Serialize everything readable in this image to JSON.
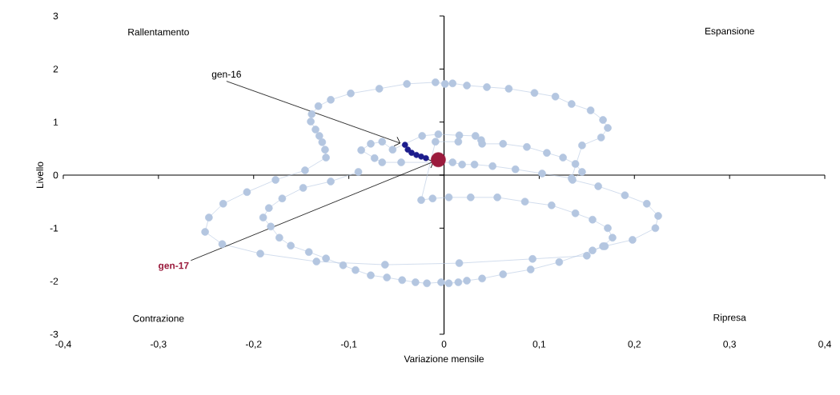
{
  "chart_data": {
    "type": "line",
    "marker": "circle",
    "xlabel": "Variazione mensile",
    "ylabel": "Livello",
    "xlim": [
      -0.4,
      0.4
    ],
    "ylim": [
      -3,
      3
    ],
    "xticks": [
      {
        "value": -0.4,
        "label": "-0,4"
      },
      {
        "value": -0.3,
        "label": "-0,3"
      },
      {
        "value": -0.2,
        "label": "-0,2"
      },
      {
        "value": -0.1,
        "label": "-0,1"
      },
      {
        "value": 0,
        "label": "0"
      },
      {
        "value": 0.1,
        "label": "0,1"
      },
      {
        "value": 0.2,
        "label": "0,2"
      },
      {
        "value": 0.3,
        "label": "0,3"
      },
      {
        "value": 0.4,
        "label": "0,4"
      }
    ],
    "yticks": [
      -3,
      -2,
      -1,
      0,
      1,
      2,
      3
    ],
    "series": [
      {
        "color": "#b4c6e0",
        "x": [
          -0.09,
          -0.119,
          -0.148,
          -0.17,
          -0.184,
          -0.19,
          -0.182,
          -0.173,
          -0.161,
          -0.142,
          -0.124,
          -0.106,
          -0.093,
          -0.077,
          -0.06,
          -0.044,
          -0.03,
          -0.018,
          -0.003,
          0.005,
          0.015,
          0.024,
          0.04,
          0.062,
          0.091,
          0.121,
          0.169,
          0.198,
          0.222,
          0.225,
          0.213,
          0.19,
          0.162,
          0.135,
          0.145,
          0.138,
          0.125,
          0.108,
          0.087,
          0.062,
          0.04,
          0.039,
          0.033,
          0.016,
          -0.006,
          -0.023,
          -0.054,
          -0.065,
          -0.077,
          -0.087,
          -0.073,
          -0.065,
          -0.045,
          0.009,
          0.019,
          0.032,
          0.051,
          0.075,
          0.103,
          0.134,
          0.145,
          0.165,
          0.172,
          0.167,
          0.154,
          0.134,
          0.117,
          0.095,
          0.068,
          0.045,
          0.024,
          0.009,
          0.001,
          -0.009,
          -0.039,
          -0.068,
          -0.098,
          -0.119,
          -0.132,
          -0.139,
          -0.14,
          -0.135,
          -0.131,
          -0.128,
          -0.125,
          -0.124,
          -0.146,
          -0.177,
          -0.207,
          -0.232,
          -0.247,
          -0.251,
          -0.233,
          -0.193,
          -0.134,
          -0.062,
          0.016,
          0.093,
          0.15,
          0.156,
          0.167,
          0.177,
          0.172,
          0.156,
          0.138,
          0.113,
          0.085,
          0.056,
          0.028,
          0.005,
          -0.012,
          -0.024,
          -0.009,
          0.015
        ],
        "values": [
          0.06,
          -0.12,
          -0.24,
          -0.44,
          -0.62,
          -0.8,
          -0.97,
          -1.18,
          -1.33,
          -1.45,
          -1.57,
          -1.7,
          -1.79,
          -1.89,
          -1.93,
          -1.98,
          -2.02,
          -2.04,
          -2.02,
          -2.04,
          -2.02,
          -1.99,
          -1.95,
          -1.87,
          -1.78,
          -1.64,
          -1.34,
          -1.22,
          -1.0,
          -0.77,
          -0.54,
          -0.38,
          -0.21,
          -0.09,
          0.06,
          0.21,
          0.33,
          0.42,
          0.53,
          0.59,
          0.59,
          0.66,
          0.74,
          0.75,
          0.77,
          0.74,
          0.48,
          0.63,
          0.59,
          0.47,
          0.32,
          0.24,
          0.24,
          0.24,
          0.2,
          0.2,
          0.17,
          0.11,
          0.03,
          -0.06,
          0.56,
          0.71,
          0.89,
          1.04,
          1.22,
          1.34,
          1.48,
          1.55,
          1.63,
          1.66,
          1.69,
          1.73,
          1.72,
          1.75,
          1.72,
          1.63,
          1.54,
          1.42,
          1.3,
          1.15,
          1.01,
          0.86,
          0.74,
          0.62,
          0.48,
          0.33,
          0.09,
          -0.09,
          -0.32,
          -0.54,
          -0.8,
          -1.07,
          -1.3,
          -1.48,
          -1.63,
          -1.69,
          -1.66,
          -1.58,
          -1.52,
          -1.42,
          -1.34,
          -1.18,
          -1.0,
          -0.84,
          -0.72,
          -0.57,
          -0.5,
          -0.42,
          -0.42,
          -0.42,
          -0.44,
          -0.47,
          0.63,
          0.63
        ]
      },
      {
        "type": "scatter",
        "color": "#1c1c8c",
        "x": [
          -0.041,
          -0.038,
          -0.034,
          -0.029,
          -0.024,
          -0.019
        ],
        "values": [
          0.57,
          0.48,
          0.42,
          0.38,
          0.35,
          0.32
        ]
      },
      {
        "color": "#9b1b3d",
        "x": [
          -0.006
        ],
        "values": [
          0.29
        ]
      }
    ],
    "annotations": [
      "Rallentamento",
      "Espansione",
      "Contrazione",
      "Ripresa",
      {
        "text": "gen-16",
        "x": -0.041,
        "y": 0.57
      },
      {
        "text": "gen-17",
        "x": -0.006,
        "y": 0.29
      }
    ]
  }
}
